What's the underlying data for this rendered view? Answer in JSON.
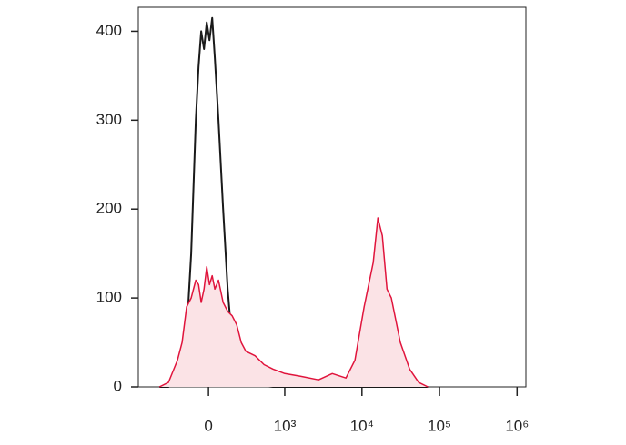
{
  "chart_data": {
    "type": "histogram-overlay",
    "x": [
      -426,
      -313,
      -222,
      -182,
      -146,
      -113,
      -81,
      -63,
      -46,
      -28,
      -11,
      6,
      23,
      40,
      63,
      94,
      126,
      160,
      197,
      238,
      284,
      392,
      527,
      699,
      1000,
      1604,
      2750,
      4140,
      6220,
      8130,
      10670,
      13970,
      16060,
      18300,
      21000,
      23940,
      31300,
      41200,
      54000,
      70800
    ],
    "series": [
      {
        "color": "#1a1a1a",
        "fill": "none",
        "values": [
          0,
          0,
          5,
          20,
          60,
          150,
          300,
          360,
          400,
          380,
          410,
          390,
          415,
          370,
          300,
          200,
          110,
          50,
          20,
          10,
          5,
          2,
          1,
          0,
          0,
          0,
          0,
          0,
          0,
          0,
          0,
          0,
          0,
          0,
          0,
          0,
          0,
          0,
          0,
          0
        ]
      },
      {
        "color": "#e0143c",
        "fill": "#fbe3e6",
        "values": [
          0,
          5,
          30,
          50,
          90,
          100,
          120,
          115,
          95,
          110,
          135,
          115,
          125,
          110,
          120,
          95,
          85,
          80,
          70,
          50,
          40,
          35,
          25,
          20,
          15,
          12,
          8,
          15,
          10,
          30,
          90,
          140,
          190,
          170,
          110,
          100,
          50,
          20,
          5,
          0
        ]
      }
    ],
    "xscale": "biexponential",
    "xlim": [
      -830,
      1300000
    ],
    "xticks": [
      0,
      {
        "value": 1000,
        "label": "10³"
      },
      {
        "value": 10000,
        "label": "10⁴"
      },
      {
        "value": 100000,
        "label": "10⁵"
      },
      {
        "value": 1000000,
        "label": "10⁶"
      }
    ],
    "ylim": [
      0,
      427
    ],
    "yticks": [
      0,
      100,
      200,
      300,
      400
    ]
  }
}
